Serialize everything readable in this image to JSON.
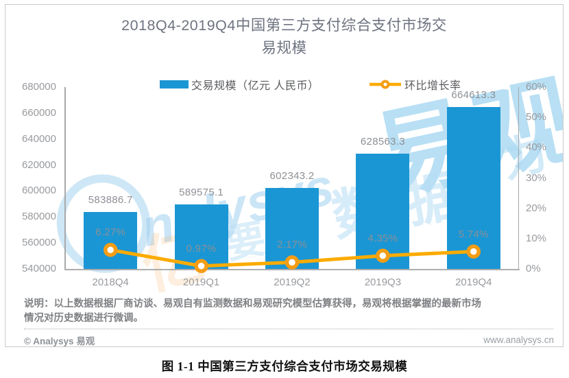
{
  "title": {
    "full": "2018Q4-2019Q4中国第三方支付综合支付市场交易规模",
    "line1": "2018Q4-2019Q4中国第三方支付综合支付市场交",
    "line2": "易规模"
  },
  "legend": [
    {
      "label": "交易规模（亿元 人民币）",
      "type": "bar",
      "color": "#1b96d4"
    },
    {
      "label": "环比增长率",
      "type": "line",
      "color": "#fbab00"
    }
  ],
  "chart_data": {
    "type": "combo bar+line",
    "title": "2018Q4-2019Q4中国第三方支付综合支付市场交易规模",
    "categories": [
      "2018Q4",
      "2019Q1",
      "2019Q2",
      "2019Q3",
      "2019Q4"
    ],
    "series": [
      {
        "name": "交易规模（亿元 人民币）",
        "type": "bar",
        "axis": "left",
        "values": [
          583886.7,
          589575.1,
          602343.2,
          628563.3,
          664613.3
        ],
        "data_labels": [
          "583886.7",
          "589575.1",
          "602343.2",
          "628563.3",
          "664613.3"
        ],
        "color": "#1b96d4"
      },
      {
        "name": "环比增长率",
        "type": "line",
        "axis": "right",
        "values": [
          6.27,
          0.97,
          2.17,
          4.35,
          5.74
        ],
        "data_labels": [
          "6.27%",
          "0.97%",
          "2.17%",
          "4.35%",
          "5.74%"
        ],
        "color": "#fbab00",
        "marker": "circle-white-fill-orange-ring"
      }
    ],
    "left_axis": {
      "min": 540000,
      "max": 680000,
      "tick_step": 20000,
      "ticks": [
        "680000",
        "660000",
        "640000",
        "620000",
        "600000",
        "580000",
        "560000",
        "540000"
      ]
    },
    "right_axis": {
      "min": 0,
      "max": 60,
      "tick_step": 10,
      "ticks": [
        "60%",
        "50%",
        "40%",
        "30%",
        "20%",
        "10%",
        "0%"
      ]
    },
    "gridlines": false,
    "legend_position": "top"
  },
  "note": {
    "line1": "说明：以上数据根据厂商访谈、易观自有监测数据和易观研究模型估算获得，易观将根据掌握的最新市场",
    "line2": "情况对历史数据进行微调。"
  },
  "footer": {
    "left": "© Analysys 易观",
    "right": "www.analysys.cn"
  },
  "caption": "图 1-1 中国第三方支付综合支付市场交易规模",
  "watermark": {
    "logo_text": "nalysys",
    "brand_cjk": "易观",
    "data_cjk": "数据",
    "extra_yao": "要",
    "extra_li": "力",
    "extra_yi": "亿"
  },
  "colors": {
    "bar": "#1b96d4",
    "line": "#fbab00",
    "marker_ring": "#f49d15",
    "axis": "#a8a8a8",
    "tick_text": "#989a9e",
    "watermark_blue": "#9ed0ee"
  }
}
